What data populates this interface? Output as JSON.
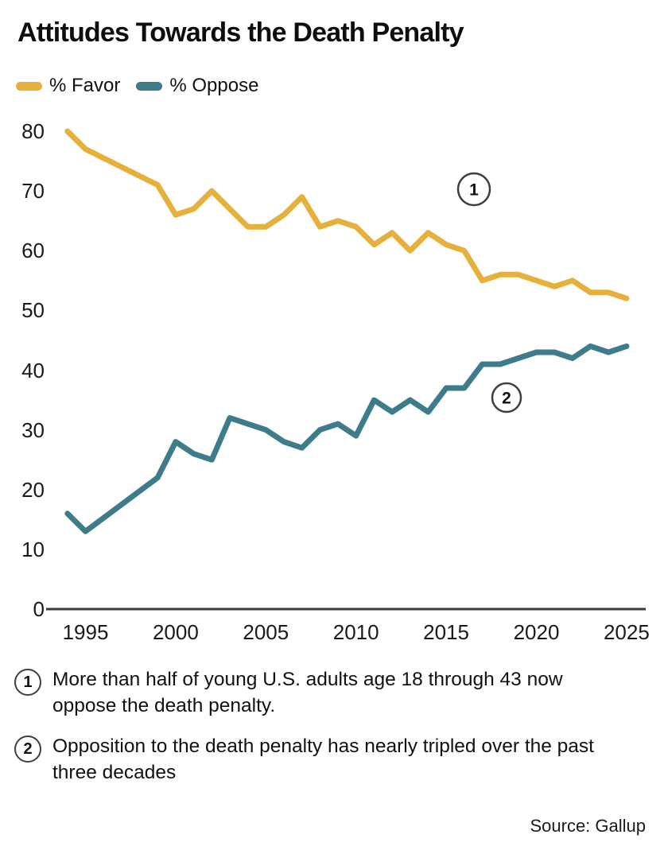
{
  "header": {
    "title": "Attitudes Towards the Death Penalty"
  },
  "chart_data": {
    "type": "line",
    "title": "Attitudes Towards the Death Penalty",
    "x": [
      1994,
      1995,
      1999,
      2000,
      2001,
      2002,
      2003,
      2004,
      2005,
      2006,
      2007,
      2008,
      2009,
      2010,
      2011,
      2012,
      2013,
      2014,
      2015,
      2016,
      2017,
      2018,
      2019,
      2020,
      2021,
      2022,
      2023,
      2024,
      2025
    ],
    "series": [
      {
        "name": "% Favor",
        "color": "#E5B13C",
        "values": [
          80,
          77,
          71,
          66,
          67,
          70,
          67,
          64,
          64,
          66,
          69,
          64,
          65,
          64,
          61,
          63,
          60,
          63,
          61,
          60,
          55,
          56,
          56,
          55,
          54,
          55,
          53,
          53,
          52
        ]
      },
      {
        "name": "% Oppose",
        "color": "#3E7B8B",
        "values": [
          16,
          13,
          22,
          28,
          26,
          25,
          32,
          31,
          30,
          28,
          27,
          30,
          31,
          29,
          35,
          33,
          35,
          33,
          37,
          37,
          41,
          41,
          42,
          43,
          43,
          42,
          44,
          43,
          44
        ]
      }
    ],
    "xlabel": "",
    "ylabel": "",
    "xlim": [
      1994,
      2025
    ],
    "ylim": [
      0,
      85
    ],
    "xticks": [
      1995,
      2000,
      2005,
      2010,
      2015,
      2020,
      2025
    ],
    "yticks": [
      0,
      10,
      20,
      30,
      40,
      50,
      60,
      70,
      80
    ],
    "grid": false,
    "legend_position": "top-left",
    "annotations": [
      {
        "label": "1",
        "cx": 596,
        "cy": 238,
        "r": 20
      },
      {
        "label": "2",
        "cx": 637,
        "cy": 500,
        "r": 18
      }
    ]
  },
  "footnotes": [
    {
      "marker": "1",
      "text": "More than half of young U.S. adults age 18 through 43 now oppose the death penalty."
    },
    {
      "marker": "2",
      "text": "Opposition to the death penalty has nearly tripled over the past three decades"
    }
  ],
  "source": {
    "text": "Source: Gallup"
  }
}
